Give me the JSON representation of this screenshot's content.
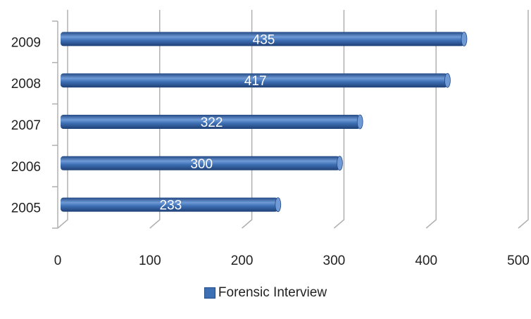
{
  "chart_data": {
    "type": "bar",
    "orientation": "horizontal",
    "categories": [
      "2005",
      "2006",
      "2007",
      "2008",
      "2009"
    ],
    "series": [
      {
        "name": "Forensic Interview",
        "values": [
          233,
          300,
          322,
          417,
          435
        ]
      }
    ],
    "xlim": [
      0,
      500
    ],
    "xticks": [
      "0",
      "100",
      "200",
      "300",
      "400",
      "500"
    ],
    "data_labels": [
      "233",
      "300",
      "322",
      "417",
      "435"
    ],
    "grid": "vertical",
    "legend_position": "bottom",
    "style": "3d-cylinder",
    "colors": {
      "bar": "#3d6fb4",
      "bar_light": "#6f9ad6",
      "bar_dark": "#244a85",
      "grid": "#b0b0b0"
    }
  },
  "legend": {
    "label": "Forensic Interview"
  }
}
